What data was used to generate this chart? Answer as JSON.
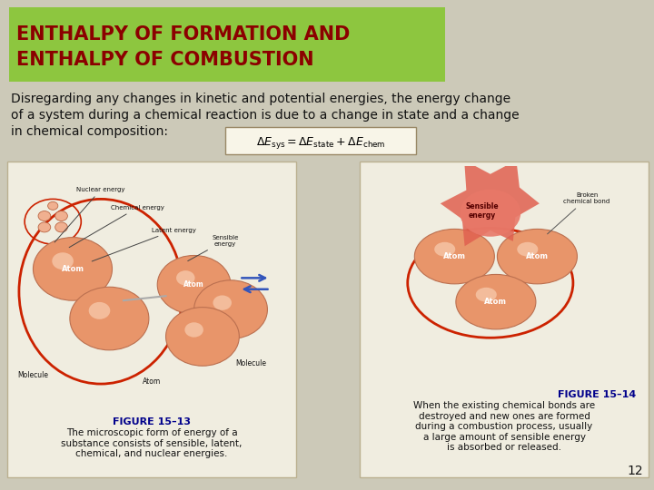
{
  "bg_color": "#ccc9b8",
  "title_bg_color": "#8dc63f",
  "title_text_color": "#8b0000",
  "title_line1": "ENTHALPY OF FORMATION AND",
  "title_line2": "ENTHALPY OF COMBUSTION",
  "title_fontsize": 15,
  "body_line1": "Disregarding any changes in kinetic and potential energies, the energy change",
  "body_line2": "of a system during a chemical reaction is due to a change in state and a change",
  "body_line3": "in chemical composition:",
  "body_fontsize": 10,
  "fig13_title": "FIGURE 15–13",
  "fig13_caption": "The microscopic form of energy of a\nsubstance consists of sensible, latent,\nchemical, and nuclear energies.",
  "fig14_title": "FIGURE 15–14",
  "fig14_caption": "When the existing chemical bonds are\ndestroyed and new ones are formed\nduring a combustion process, usually\na large amount of sensible energy\nis absorbed or released.",
  "fig_title_color": "#00008b",
  "fig_title_fontsize": 8,
  "fig_caption_fontsize": 7.5,
  "page_number": "12",
  "figure_box_color": "#f0ede0",
  "figure_box_border": "#bbb090"
}
